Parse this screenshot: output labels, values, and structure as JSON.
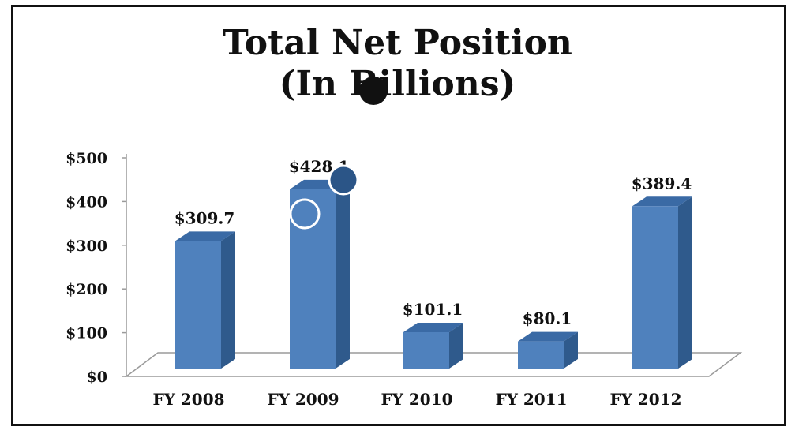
{
  "chart_data": {
    "type": "bar",
    "title": "Total Net Position",
    "subtitle": "(In Billions)",
    "categories": [
      "FY 2008",
      "FY 2009",
      "FY 2010",
      "FY 2011",
      "FY 2012"
    ],
    "values": [
      309.7,
      428.1,
      101.1,
      80.1,
      389.4
    ],
    "data_labels": [
      "$309.7",
      "$428.1",
      "$101.1",
      "$80.1",
      "$389.4"
    ],
    "y_ticks": [
      0,
      100,
      200,
      300,
      400,
      500
    ],
    "y_tick_labels": [
      "$0",
      "$100",
      "$200",
      "$300",
      "$400",
      "$500"
    ],
    "ylim": [
      0,
      500
    ],
    "xlabel": "",
    "ylabel": "",
    "grid": false,
    "style": "3d-bar",
    "colors": {
      "bar_front": "#4f81bd",
      "bar_side": "#2f5a8c",
      "bar_top": "#3a6aa5",
      "floor": "#ffffff"
    }
  },
  "markers": {
    "black_dot_color": "#111111",
    "blue_dot_color": "#2b5587",
    "ring_color": "#ffffff"
  }
}
